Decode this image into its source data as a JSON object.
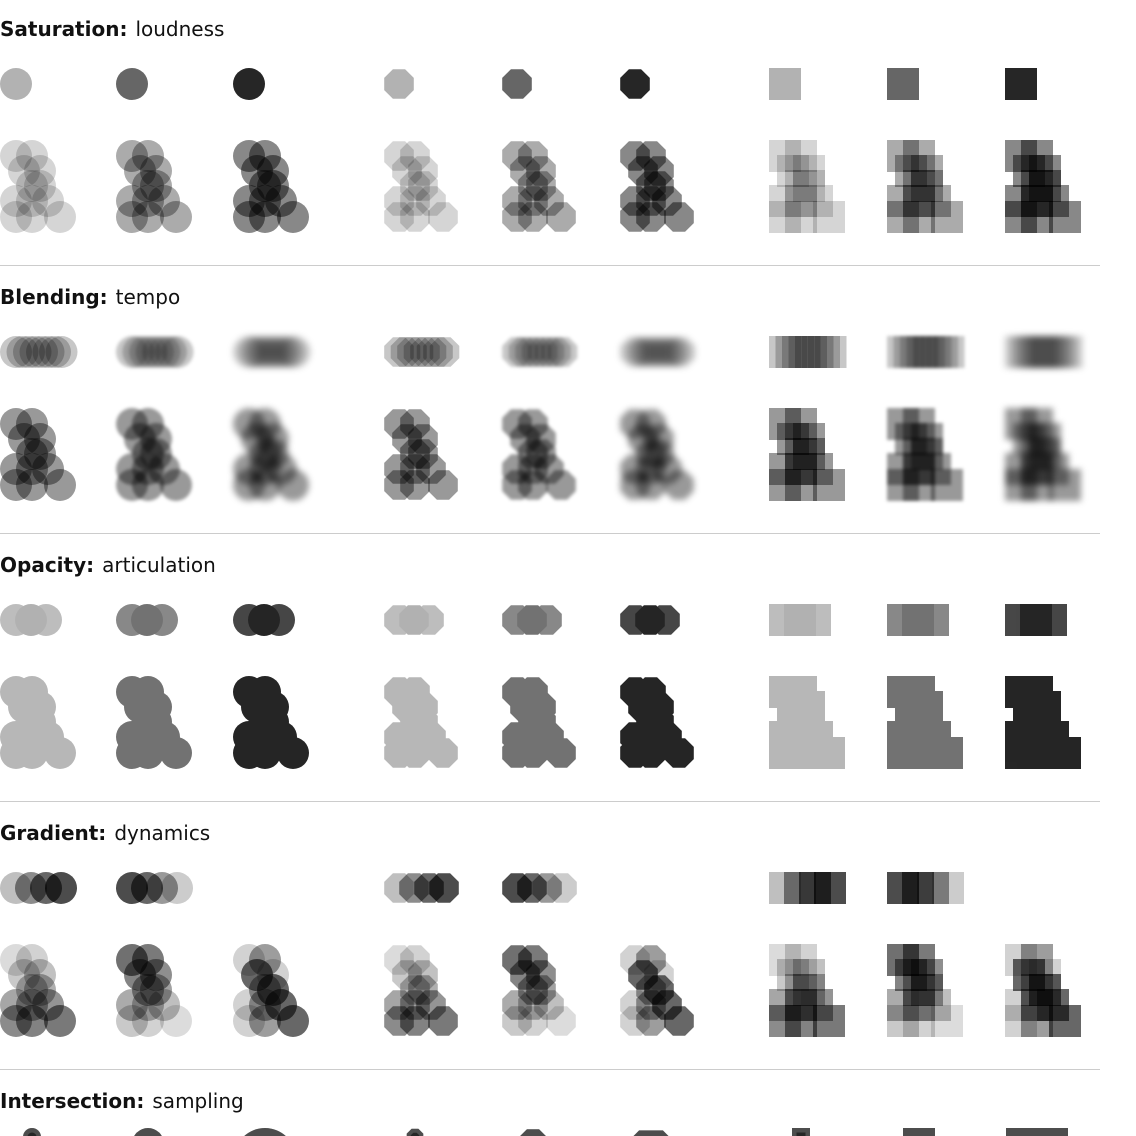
{
  "sections": [
    {
      "title": "Saturation:",
      "subtitle": "loudness"
    },
    {
      "title": "Blending:",
      "subtitle": "tempo"
    },
    {
      "title": "Opacity:",
      "subtitle": "articulation"
    },
    {
      "title": "Gradient:",
      "subtitle": "dynamics"
    },
    {
      "title": "Intersection:",
      "subtitle": "sampling"
    }
  ]
}
